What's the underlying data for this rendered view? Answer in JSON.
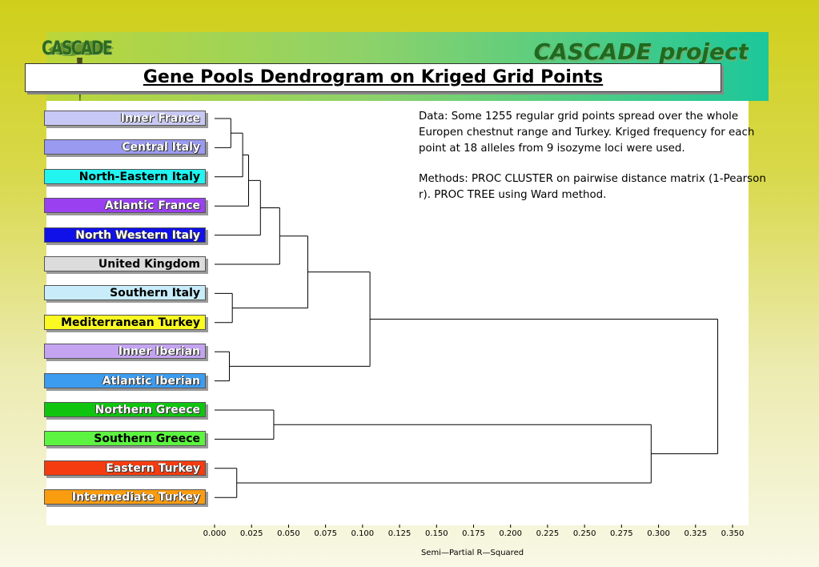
{
  "header": {
    "logo_text": "CASCADE",
    "project_title": "CASCADE project",
    "slide_title": "Gene Pools Dendrogram on Kriged Grid Points"
  },
  "info": {
    "data_text": "Data: Some 1255 regular grid points spread over the whole Europen chestnut range and Turkey. Kriged frequency for each point at 18 alleles from 9 isozyme loci were used.",
    "methods_text": "Methods: PROC CLUSTER on pairwise distance matrix (1-Pearson r). PROC TREE using Ward method."
  },
  "leaves": [
    {
      "label": "Inner France",
      "color": "#c8c8f4",
      "text": "light"
    },
    {
      "label": "Central Italy",
      "color": "#9a9af0",
      "text": "light"
    },
    {
      "label": "North-Eastern Italy",
      "color": "#22f4f0",
      "text": "dark"
    },
    {
      "label": "Atlantic France",
      "color": "#9a40f0",
      "text": "light"
    },
    {
      "label": "North Western Italy",
      "color": "#1010e8",
      "text": "light"
    },
    {
      "label": "United Kingdom",
      "color": "#dcdcdc",
      "text": "dark"
    },
    {
      "label": "Southern Italy",
      "color": "#c8ecfa",
      "text": "dark"
    },
    {
      "label": "Mediterranean Turkey",
      "color": "#fafa22",
      "text": "dark"
    },
    {
      "label": "Inner Iberian",
      "color": "#c4a4f0",
      "text": "light"
    },
    {
      "label": "Atlantic Iberian",
      "color": "#3c9cf0",
      "text": "light"
    },
    {
      "label": "Northern Greece",
      "color": "#10c410",
      "text": "light"
    },
    {
      "label": "Southern Greece",
      "color": "#5cf440",
      "text": "dark"
    },
    {
      "label": "Eastern Turkey",
      "color": "#f43c10",
      "text": "light"
    },
    {
      "label": "Intermediate Turkey",
      "color": "#fa9c10",
      "text": "light"
    }
  ],
  "axis": {
    "title": "Semi—Partial R—Squared",
    "ticks": [
      "0.000",
      "0.025",
      "0.050",
      "0.075",
      "0.100",
      "0.125",
      "0.150",
      "0.175",
      "0.200",
      "0.225",
      "0.250",
      "0.275",
      "0.300",
      "0.325",
      "0.350"
    ],
    "range": [
      0,
      0.35
    ]
  },
  "merges": [
    {
      "a": "L0",
      "b": "L1",
      "h": 0.011,
      "id": "M1"
    },
    {
      "a": "M1",
      "b": "L2",
      "h": 0.019,
      "id": "M2"
    },
    {
      "a": "M2",
      "b": "L3",
      "h": 0.023,
      "id": "M3"
    },
    {
      "a": "M3",
      "b": "L4",
      "h": 0.031,
      "id": "M4"
    },
    {
      "a": "M4",
      "b": "L5",
      "h": 0.044,
      "id": "M5"
    },
    {
      "a": "L6",
      "b": "L7",
      "h": 0.012,
      "id": "M6"
    },
    {
      "a": "M5",
      "b": "M6",
      "h": 0.063,
      "id": "M7"
    },
    {
      "a": "L8",
      "b": "L9",
      "h": 0.01,
      "id": "M8"
    },
    {
      "a": "M7",
      "b": "M8",
      "h": 0.105,
      "id": "M9"
    },
    {
      "a": "L10",
      "b": "L11",
      "h": 0.04,
      "id": "M10"
    },
    {
      "a": "L12",
      "b": "L13",
      "h": 0.015,
      "id": "M11"
    },
    {
      "a": "M10",
      "b": "M11",
      "h": 0.295,
      "id": "M12"
    },
    {
      "a": "M9",
      "b": "M12",
      "h": 0.34,
      "id": "M13"
    }
  ]
}
